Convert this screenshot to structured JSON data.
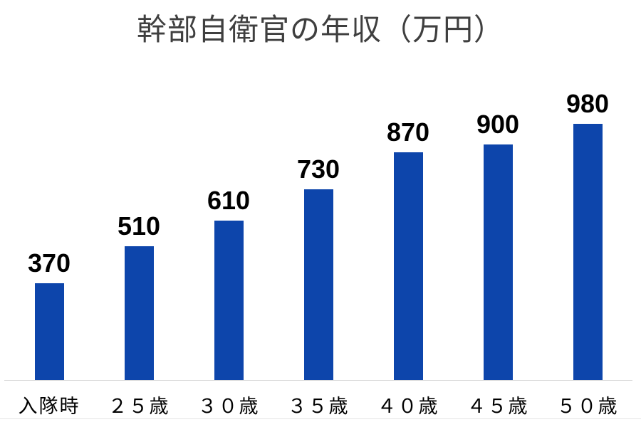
{
  "chart_data": {
    "type": "bar",
    "title": "幹部自衛官の年収（万円）",
    "categories": [
      "入隊時",
      "２５歳",
      "３０歳",
      "３５歳",
      "４０歳",
      "４５歳",
      "５０歳"
    ],
    "values": [
      370,
      510,
      610,
      730,
      870,
      900,
      980
    ],
    "data_labels": [
      "370",
      "510",
      "610",
      "730",
      "870",
      "900",
      "980"
    ],
    "xlabel": "",
    "ylabel": "",
    "ylim": [
      0,
      1180
    ],
    "grid": false,
    "legend": false,
    "show_data_labels": true,
    "bar_color": "#0d45ab",
    "data_label_color": "#000000",
    "category_label_color": "#000000",
    "title_color": "#3f3f3f",
    "axis_line_color": "#d9d9d9"
  }
}
